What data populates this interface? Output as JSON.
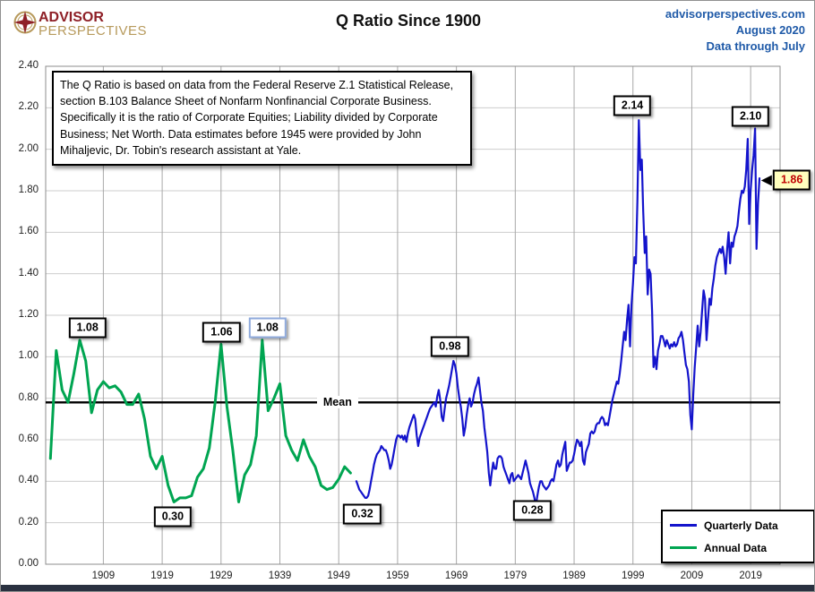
{
  "header": {
    "logo_line1": "ADVISOR",
    "logo_line2": "PERSPECTIVES",
    "title": "Q Ratio Since 1900",
    "site": "advisorperspectives.com",
    "date": "August 2020",
    "through": "Data through July"
  },
  "annotation": {
    "lines": [
      "The Q Ratio is based on data from the Federal Reserve Z.1 Statistical Release,",
      "section B.103 Balance Sheet of Nonfarm Nonfinancial Corporate Business.",
      "Specifically it is the ratio  of Corporate Equities; Liability divided by Corporate",
      "Business; Net Worth.  Data estimates before 1945 were provided by John",
      "Mihaljevic, Dr. Tobin's research assistant at Yale."
    ]
  },
  "legend": {
    "items": [
      {
        "label": "Quarterly Data",
        "color": "#1414cc"
      },
      {
        "label": "Annual Data",
        "color": "#00a551"
      }
    ]
  },
  "colors": {
    "quarterly_line": "#1414cc",
    "annual_line": "#00a551",
    "header_text": "#1f5aa8",
    "logo_red": "#8e1f26",
    "logo_gold": "#b79a5c",
    "callout_yellow_bg": "#ffffbe",
    "callout_red_text": "#c00000",
    "mean_line": "#000000"
  },
  "chart_data": {
    "type": "line",
    "title": "Q Ratio Since 1900",
    "x_axis": {
      "ticks": [
        "1909",
        "1919",
        "1929",
        "1939",
        "1949",
        "1959",
        "1969",
        "1979",
        "1989",
        "1999",
        "2009",
        "2019"
      ],
      "range": [
        1899.2,
        2024
      ]
    },
    "y_axis": {
      "ticks": [
        "0.00",
        "0.20",
        "0.40",
        "0.60",
        "0.80",
        "1.00",
        "1.20",
        "1.40",
        "1.60",
        "1.80",
        "2.00",
        "2.20",
        "2.40"
      ],
      "range": [
        0,
        2.4
      ]
    },
    "grid": true,
    "legend_position": "bottom-right",
    "mean": {
      "label": "Mean",
      "value": 0.78
    },
    "series": [
      {
        "name": "Annual Data",
        "color": "#00a551",
        "start_year": 1900,
        "step": 1,
        "values": [
          0.51,
          1.03,
          0.84,
          0.78,
          0.92,
          1.08,
          0.98,
          0.73,
          0.84,
          0.88,
          0.85,
          0.86,
          0.83,
          0.77,
          0.77,
          0.82,
          0.7,
          0.52,
          0.46,
          0.52,
          0.38,
          0.3,
          0.32,
          0.32,
          0.33,
          0.42,
          0.46,
          0.56,
          0.78,
          1.06,
          0.76,
          0.55,
          0.3,
          0.43,
          0.48,
          0.62,
          1.08,
          0.74,
          0.8,
          0.87,
          0.62,
          0.55,
          0.5,
          0.6,
          0.52,
          0.47,
          0.38,
          0.36,
          0.37,
          0.41,
          0.47,
          0.44
        ]
      },
      {
        "name": "Quarterly Data",
        "color": "#1414cc",
        "start_year": 1952,
        "step": 0.25,
        "values": [
          0.4,
          0.38,
          0.36,
          0.35,
          0.34,
          0.33,
          0.32,
          0.32,
          0.33,
          0.36,
          0.4,
          0.44,
          0.48,
          0.51,
          0.53,
          0.54,
          0.55,
          0.57,
          0.56,
          0.55,
          0.55,
          0.53,
          0.5,
          0.46,
          0.48,
          0.52,
          0.56,
          0.6,
          0.62,
          0.62,
          0.61,
          0.62,
          0.6,
          0.62,
          0.59,
          0.63,
          0.66,
          0.68,
          0.7,
          0.72,
          0.7,
          0.62,
          0.57,
          0.61,
          0.63,
          0.65,
          0.67,
          0.69,
          0.71,
          0.73,
          0.75,
          0.76,
          0.77,
          0.78,
          0.76,
          0.81,
          0.84,
          0.79,
          0.71,
          0.69,
          0.75,
          0.8,
          0.83,
          0.86,
          0.9,
          0.94,
          0.98,
          0.96,
          0.92,
          0.85,
          0.8,
          0.76,
          0.7,
          0.62,
          0.66,
          0.72,
          0.77,
          0.8,
          0.76,
          0.78,
          0.82,
          0.85,
          0.87,
          0.9,
          0.84,
          0.78,
          0.74,
          0.66,
          0.6,
          0.54,
          0.44,
          0.38,
          0.44,
          0.49,
          0.46,
          0.46,
          0.51,
          0.52,
          0.52,
          0.51,
          0.47,
          0.45,
          0.43,
          0.41,
          0.39,
          0.43,
          0.44,
          0.4,
          0.41,
          0.42,
          0.43,
          0.42,
          0.41,
          0.44,
          0.47,
          0.5,
          0.47,
          0.44,
          0.39,
          0.37,
          0.35,
          0.32,
          0.28,
          0.33,
          0.37,
          0.4,
          0.4,
          0.38,
          0.37,
          0.36,
          0.37,
          0.38,
          0.4,
          0.41,
          0.4,
          0.44,
          0.48,
          0.5,
          0.47,
          0.48,
          0.53,
          0.56,
          0.59,
          0.45,
          0.47,
          0.49,
          0.49,
          0.5,
          0.53,
          0.57,
          0.6,
          0.59,
          0.57,
          0.59,
          0.5,
          0.48,
          0.54,
          0.56,
          0.58,
          0.63,
          0.64,
          0.63,
          0.64,
          0.67,
          0.68,
          0.68,
          0.7,
          0.71,
          0.7,
          0.67,
          0.68,
          0.67,
          0.71,
          0.75,
          0.79,
          0.82,
          0.85,
          0.88,
          0.87,
          0.92,
          0.98,
          1.05,
          1.12,
          1.08,
          1.18,
          1.25,
          1.05,
          1.25,
          1.35,
          1.48,
          1.45,
          1.75,
          2.14,
          1.9,
          1.95,
          1.7,
          1.5,
          1.58,
          1.3,
          1.42,
          1.4,
          1.22,
          0.95,
          1.0,
          0.94,
          1.03,
          1.06,
          1.1,
          1.1,
          1.08,
          1.05,
          1.08,
          1.06,
          1.04,
          1.06,
          1.05,
          1.07,
          1.05,
          1.06,
          1.09,
          1.1,
          1.12,
          1.08,
          1.02,
          0.96,
          0.94,
          0.88,
          0.72,
          0.65,
          0.82,
          0.95,
          1.05,
          1.15,
          1.05,
          1.12,
          1.22,
          1.32,
          1.28,
          1.08,
          1.18,
          1.28,
          1.25,
          1.33,
          1.38,
          1.44,
          1.48,
          1.5,
          1.52,
          1.5,
          1.53,
          1.48,
          1.4,
          1.52,
          1.6,
          1.45,
          1.55,
          1.53,
          1.58,
          1.6,
          1.63,
          1.7,
          1.76,
          1.8,
          1.79,
          1.82,
          1.9,
          2.05,
          1.64,
          1.8,
          1.9,
          1.97,
          2.1,
          1.52,
          1.74,
          1.86
        ]
      }
    ],
    "callouts": [
      {
        "label": "1.08",
        "year": 1906.3,
        "value": 1.14,
        "style": "white"
      },
      {
        "label": "0.30",
        "year": 1920.8,
        "value": 0.23,
        "style": "white"
      },
      {
        "label": "1.06",
        "year": 1929.1,
        "value": 1.12,
        "style": "white"
      },
      {
        "label": "1.08",
        "year": 1936.9,
        "value": 1.14,
        "style": "white-blue"
      },
      {
        "label": "0.32",
        "year": 1953.0,
        "value": 0.24,
        "style": "white"
      },
      {
        "label": "0.98",
        "year": 1967.9,
        "value": 1.05,
        "style": "white"
      },
      {
        "label": "0.28",
        "year": 1981.9,
        "value": 0.26,
        "style": "white"
      },
      {
        "label": "2.14",
        "year": 1998.9,
        "value": 2.21,
        "style": "white"
      },
      {
        "label": "2.10",
        "year": 2019.0,
        "value": 2.16,
        "style": "white"
      },
      {
        "label": "1.86",
        "year": 2026.0,
        "value": 1.85,
        "style": "yellow-arrow"
      }
    ]
  }
}
